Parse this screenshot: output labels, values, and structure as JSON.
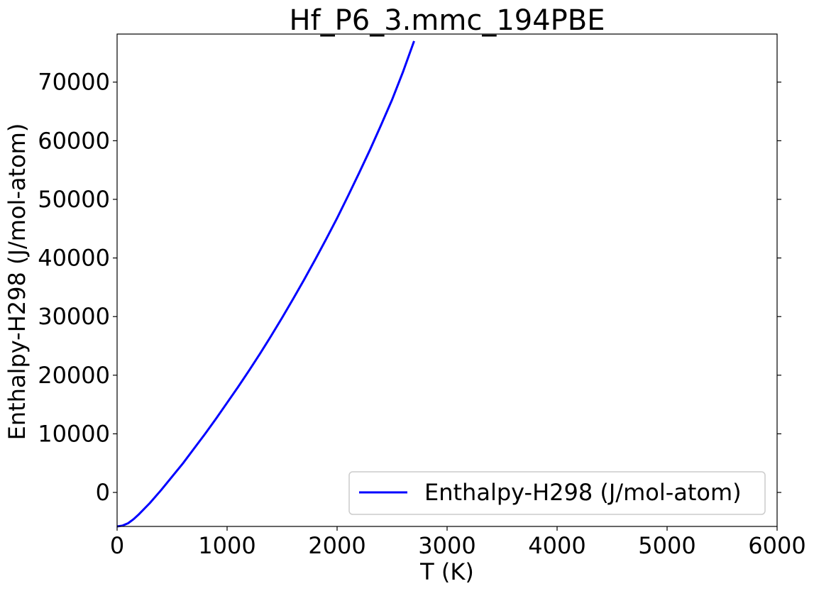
{
  "chart_data": {
    "type": "line",
    "title": "Hf_P6_3.mmc_194PBE",
    "xlabel": "T (K)",
    "ylabel": "Enthalpy-H298 (J/mol-atom)",
    "xlim": [
      0,
      6000
    ],
    "ylim": [
      -5800,
      78200
    ],
    "xticks": [
      0,
      1000,
      2000,
      3000,
      4000,
      5000,
      6000
    ],
    "xtick_labels": [
      "0",
      "1000",
      "2000",
      "3000",
      "4000",
      "5000",
      "6000"
    ],
    "yticks": [
      0,
      10000,
      20000,
      30000,
      40000,
      50000,
      60000,
      70000
    ],
    "ytick_labels": [
      "0",
      "10000",
      "20000",
      "30000",
      "40000",
      "50000",
      "60000",
      "70000"
    ],
    "grid": false,
    "legend_position": "lower-right",
    "series": [
      {
        "name": "Enthalpy-H298 (J/mol-atom)",
        "color": "#0000ff",
        "x": [
          0,
          50,
          100,
          150,
          200,
          298,
          400,
          500,
          600,
          700,
          800,
          900,
          1000,
          1100,
          1200,
          1300,
          1400,
          1500,
          1600,
          1700,
          1800,
          1900,
          2000,
          2100,
          2200,
          2300,
          2400,
          2500,
          2600,
          2700
        ],
        "y": [
          -5800,
          -5650,
          -5250,
          -4550,
          -3700,
          -1800,
          400,
          2700,
          5000,
          7500,
          10000,
          12600,
          15300,
          18000,
          20800,
          23700,
          26700,
          29800,
          33000,
          36300,
          39700,
          43200,
          46800,
          50600,
          54500,
          58500,
          62700,
          67000,
          71800,
          77000
        ]
      }
    ]
  }
}
